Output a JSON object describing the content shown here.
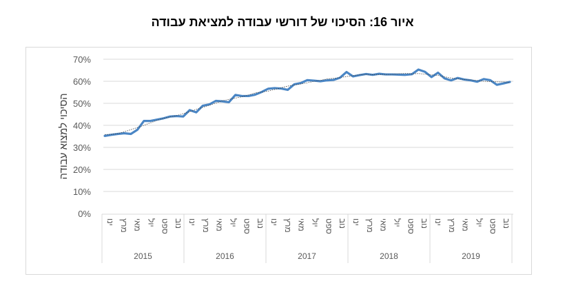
{
  "title": "איור 16: הסיכוי של דורשי עבודה למציאת עבודה",
  "chart_data": {
    "type": "line",
    "title": "איור 16: הסיכוי של דורשי עבודה למציאת עבודה",
    "xlabel": "",
    "ylabel": "הסיכוי למצוא עבודה",
    "ylim": [
      0,
      70
    ],
    "y_ticks": [
      "0%",
      "10%",
      "20%",
      "30%",
      "40%",
      "50%",
      "60%",
      "70%"
    ],
    "grid": true,
    "legend": "none",
    "years": [
      "2015",
      "2016",
      "2017",
      "2018",
      "2019"
    ],
    "month_tick_labels": [
      "ינו",
      "מרץ",
      "מאי",
      "יול",
      "ספט",
      "נוב"
    ],
    "series": [
      {
        "name": "הסיכוי למצוא עבודה",
        "color": "#4a86c5",
        "values": [
          35.2,
          35.7,
          36.1,
          36.4,
          36.1,
          38.0,
          42.0,
          42.0,
          42.6,
          43.2,
          44.0,
          44.2,
          44.0,
          46.9,
          45.9,
          48.9,
          49.5,
          51.1,
          50.9,
          50.5,
          53.8,
          53.3,
          53.3,
          53.9,
          55.1,
          56.6,
          56.9,
          56.7,
          56.1,
          58.6,
          59.2,
          60.5,
          60.3,
          60.0,
          60.4,
          60.6,
          61.6,
          64.2,
          62.2,
          62.8,
          63.3,
          62.9,
          63.4,
          63.1,
          63.1,
          63.0,
          62.9,
          63.2,
          65.3,
          64.3,
          61.9,
          63.9,
          61.3,
          60.4,
          61.5,
          60.8,
          60.4,
          59.8,
          61.0,
          60.5,
          58.4,
          59.0,
          59.7
        ]
      },
      {
        "name": "trend",
        "style": "dotted",
        "color": "#404040",
        "values_approx": "polynomial trendline following series"
      }
    ]
  },
  "axis": {
    "y_label": "הסיכוי למצוא עבודה"
  }
}
